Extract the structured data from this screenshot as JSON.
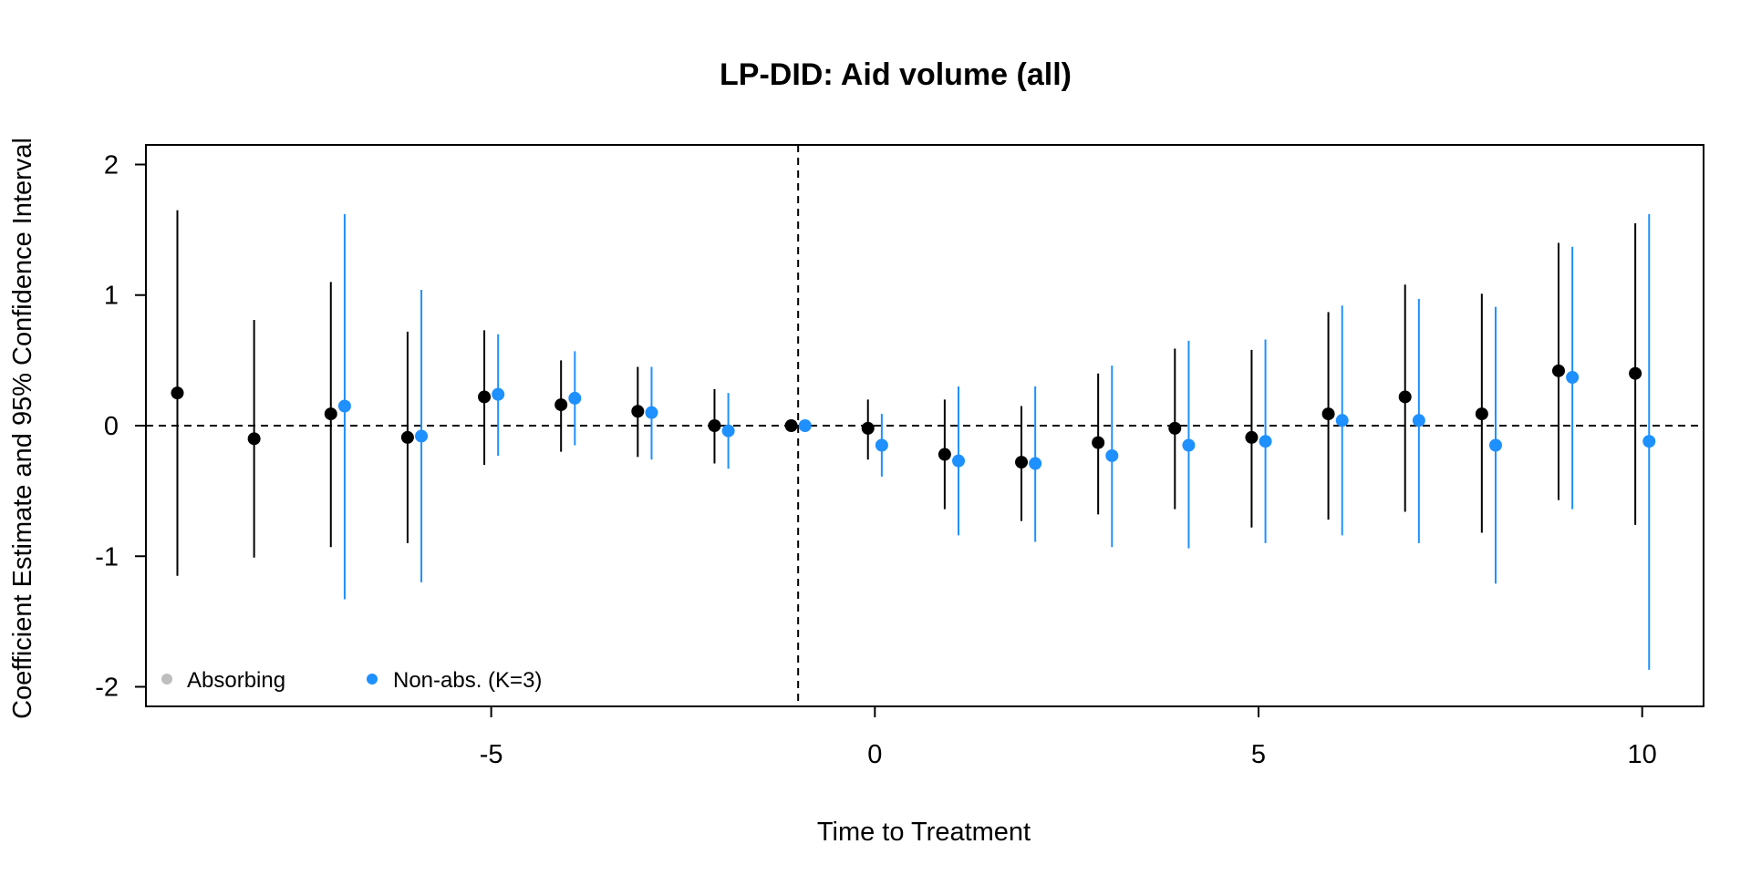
{
  "chart_data": {
    "type": "scatter",
    "title": "LP-DID: Aid volume (all)",
    "xlabel": "Time to Treatment",
    "ylabel": "Coefficient Estimate and 95% Confidence Interval",
    "xlim": [
      -9.5,
      10.8
    ],
    "ylim": [
      -2.15,
      2.15
    ],
    "x_ticks": [
      -5,
      0,
      5,
      10
    ],
    "y_ticks": [
      -2,
      -1,
      0,
      1,
      2
    ],
    "x_tick_labels": [
      "-5",
      "0",
      "5",
      "10"
    ],
    "y_tick_labels": [
      "-2",
      "-1",
      "0",
      "1",
      "2"
    ],
    "reference_lines": {
      "horizontal_y": 0,
      "vertical_x": -1
    },
    "legend": {
      "position": "bottom-left",
      "entries": [
        {
          "label": "Absorbing",
          "color": "#bebebe"
        },
        {
          "label": "Non-abs. (K=3)",
          "color": "#1e90ff"
        }
      ]
    },
    "series": [
      {
        "name": "Absorbing",
        "color": "#000000",
        "points": [
          {
            "x": -9,
            "y": 0.25,
            "lo": -1.15,
            "hi": 1.65
          },
          {
            "x": -8,
            "y": -0.1,
            "lo": -1.01,
            "hi": 0.81
          },
          {
            "x": -7,
            "y": 0.09,
            "lo": -0.93,
            "hi": 1.1
          },
          {
            "x": -6,
            "y": -0.09,
            "lo": -0.9,
            "hi": 0.72
          },
          {
            "x": -5,
            "y": 0.22,
            "lo": -0.3,
            "hi": 0.73
          },
          {
            "x": -4,
            "y": 0.16,
            "lo": -0.2,
            "hi": 0.5
          },
          {
            "x": -3,
            "y": 0.11,
            "lo": -0.24,
            "hi": 0.45
          },
          {
            "x": -2,
            "y": 0.0,
            "lo": -0.29,
            "hi": 0.28
          },
          {
            "x": -1,
            "y": 0.0,
            "lo": 0.0,
            "hi": 0.0
          },
          {
            "x": 0,
            "y": -0.02,
            "lo": -0.26,
            "hi": 0.2
          },
          {
            "x": 1,
            "y": -0.22,
            "lo": -0.64,
            "hi": 0.2
          },
          {
            "x": 2,
            "y": -0.28,
            "lo": -0.73,
            "hi": 0.15
          },
          {
            "x": 3,
            "y": -0.13,
            "lo": -0.68,
            "hi": 0.4
          },
          {
            "x": 4,
            "y": -0.02,
            "lo": -0.64,
            "hi": 0.59
          },
          {
            "x": 5,
            "y": -0.09,
            "lo": -0.78,
            "hi": 0.58
          },
          {
            "x": 6,
            "y": 0.09,
            "lo": -0.72,
            "hi": 0.87
          },
          {
            "x": 7,
            "y": 0.22,
            "lo": -0.66,
            "hi": 1.08
          },
          {
            "x": 8,
            "y": 0.09,
            "lo": -0.82,
            "hi": 1.01
          },
          {
            "x": 9,
            "y": 0.42,
            "lo": -0.57,
            "hi": 1.4
          },
          {
            "x": 10,
            "y": 0.4,
            "lo": -0.76,
            "hi": 1.55
          }
        ]
      },
      {
        "name": "Non-abs. (K=3)",
        "color": "#1e90ff",
        "points": [
          {
            "x": -7,
            "y": 0.15,
            "lo": -1.33,
            "hi": 1.62
          },
          {
            "x": -6,
            "y": -0.08,
            "lo": -1.2,
            "hi": 1.04
          },
          {
            "x": -5,
            "y": 0.24,
            "lo": -0.23,
            "hi": 0.7
          },
          {
            "x": -4,
            "y": 0.21,
            "lo": -0.15,
            "hi": 0.57
          },
          {
            "x": -3,
            "y": 0.1,
            "lo": -0.26,
            "hi": 0.45
          },
          {
            "x": -2,
            "y": -0.04,
            "lo": -0.33,
            "hi": 0.25
          },
          {
            "x": -1,
            "y": 0.0,
            "lo": 0.0,
            "hi": 0.0
          },
          {
            "x": 0,
            "y": -0.15,
            "lo": -0.39,
            "hi": 0.09
          },
          {
            "x": 1,
            "y": -0.27,
            "lo": -0.84,
            "hi": 0.3
          },
          {
            "x": 2,
            "y": -0.29,
            "lo": -0.89,
            "hi": 0.3
          },
          {
            "x": 3,
            "y": -0.23,
            "lo": -0.93,
            "hi": 0.46
          },
          {
            "x": 4,
            "y": -0.15,
            "lo": -0.94,
            "hi": 0.65
          },
          {
            "x": 5,
            "y": -0.12,
            "lo": -0.9,
            "hi": 0.66
          },
          {
            "x": 6,
            "y": 0.04,
            "lo": -0.84,
            "hi": 0.92
          },
          {
            "x": 7,
            "y": 0.04,
            "lo": -0.9,
            "hi": 0.97
          },
          {
            "x": 8,
            "y": -0.15,
            "lo": -1.21,
            "hi": 0.91
          },
          {
            "x": 9,
            "y": 0.37,
            "lo": -0.64,
            "hi": 1.37
          },
          {
            "x": 10,
            "y": -0.12,
            "lo": -1.87,
            "hi": 1.62
          }
        ]
      }
    ]
  }
}
